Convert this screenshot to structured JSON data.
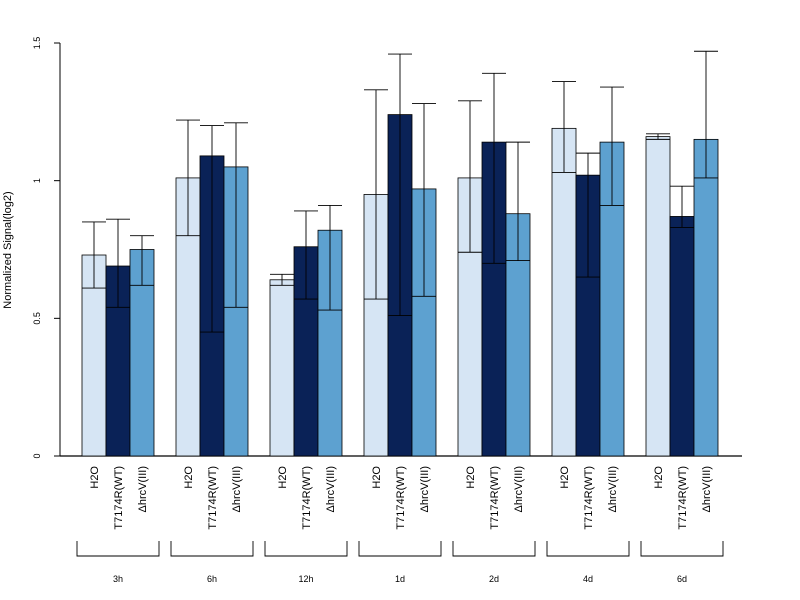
{
  "chart_data": {
    "type": "bar",
    "title": "",
    "xlabel": "",
    "ylabel": "Normalized Signal(log2)",
    "ylim": [
      0,
      1.5
    ],
    "yticks": [
      0,
      0.5,
      1,
      1.5
    ],
    "ytick_labels": [
      "0",
      "0.5",
      "1",
      "1.5"
    ],
    "grid": false,
    "legend": "none",
    "groups": [
      "3h",
      "6h",
      "12h",
      "1d",
      "2d",
      "4d",
      "6d"
    ],
    "series": [
      {
        "name": "H2O",
        "color": "#d6e5f4",
        "values": [
          0.73,
          1.01,
          0.64,
          0.95,
          1.01,
          1.19,
          1.16
        ],
        "err_low": [
          0.61,
          0.8,
          0.62,
          0.57,
          0.74,
          1.03,
          1.15
        ],
        "err_high": [
          0.85,
          1.22,
          0.66,
          1.33,
          1.29,
          1.36,
          1.17
        ]
      },
      {
        "name": "T7174R(WT)",
        "color": "#0a2257",
        "values": [
          0.69,
          1.09,
          0.76,
          1.24,
          1.14,
          1.02,
          0.87
        ],
        "err_low": [
          0.54,
          0.45,
          0.57,
          0.51,
          0.7,
          0.65,
          0.83
        ],
        "err_high": [
          0.86,
          1.2,
          0.89,
          1.46,
          1.39,
          1.1,
          0.98
        ]
      },
      {
        "name": "ΔhrcV(III)",
        "color": "#5da1d0",
        "values": [
          0.75,
          1.05,
          0.82,
          0.97,
          0.88,
          1.14,
          1.15
        ],
        "err_low": [
          0.62,
          0.54,
          0.53,
          0.58,
          0.71,
          0.91,
          1.01
        ],
        "err_high": [
          0.8,
          1.21,
          0.91,
          1.28,
          1.14,
          1.34,
          1.47
        ]
      }
    ]
  }
}
